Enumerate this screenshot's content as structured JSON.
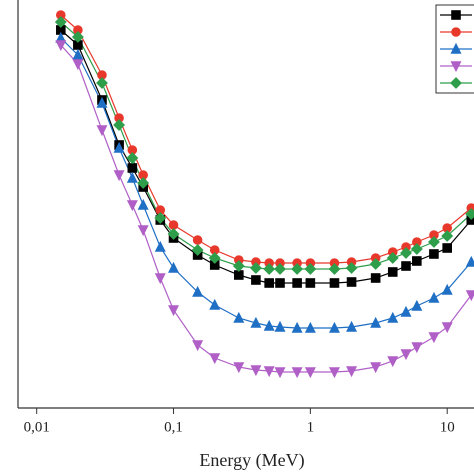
{
  "chart_data": {
    "type": "line",
    "xlabel": "Energy (MeV)",
    "xscale": "log",
    "x": [
      0.015,
      0.02,
      0.03,
      0.04,
      0.05,
      0.06,
      0.08,
      0.1,
      0.15,
      0.2,
      0.3,
      0.4,
      0.5,
      0.6,
      0.8,
      1,
      1.5,
      2,
      3,
      4,
      5,
      6,
      8,
      10,
      15
    ],
    "xlim": [
      0.0073,
      15.7
    ],
    "xticks": [
      {
        "value": 0.01,
        "label": "0,01"
      },
      {
        "value": 0.1,
        "label": "0,1"
      },
      1,
      10
    ],
    "ylim": [
      0,
      408
    ],
    "legend": "upper right",
    "series": [
      {
        "color": "#000000",
        "marker": "square",
        "values": [
          378,
          363,
          308,
          263,
          240,
          221,
          188,
          170,
          153,
          143,
          133,
          128,
          125,
          125,
          125,
          125,
          125,
          126,
          130,
          136,
          142,
          147,
          154,
          160,
          188
        ]
      },
      {
        "color": "#e8382b",
        "marker": "circle",
        "values": [
          393,
          378,
          333,
          290,
          258,
          233,
          198,
          183,
          168,
          158,
          148,
          146,
          145,
          145,
          145,
          145,
          145,
          146,
          150,
          156,
          161,
          166,
          173,
          180,
          200
        ]
      },
      {
        "color": "#1f6fc5",
        "marker": "triangle",
        "values": [
          370,
          353,
          305,
          260,
          230,
          203,
          161,
          140,
          116,
          103,
          90,
          85,
          82,
          81,
          80,
          80,
          80,
          81,
          85,
          90,
          96,
          102,
          110,
          118,
          146
        ]
      },
      {
        "color": "#b05fc7",
        "marker": "triangle-down",
        "values": [
          363,
          344,
          278,
          233,
          203,
          178,
          130,
          98,
          63,
          50,
          41,
          38,
          37,
          36,
          36,
          36,
          36,
          37,
          41,
          47,
          54,
          61,
          71,
          81,
          113
        ]
      },
      {
        "color": "#2e9e4a",
        "marker": "diamond",
        "values": [
          386,
          371,
          325,
          283,
          250,
          225,
          190,
          174,
          158,
          150,
          142,
          140,
          139,
          139,
          139,
          139,
          139,
          140,
          144,
          150,
          155,
          159,
          166,
          172,
          194
        ]
      }
    ]
  }
}
